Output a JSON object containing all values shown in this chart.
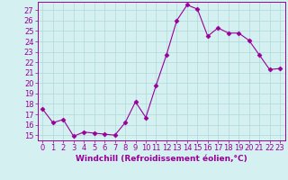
{
  "x": [
    0,
    1,
    2,
    3,
    4,
    5,
    6,
    7,
    8,
    9,
    10,
    11,
    12,
    13,
    14,
    15,
    16,
    17,
    18,
    19,
    20,
    21,
    22,
    23
  ],
  "y": [
    17.5,
    16.2,
    16.5,
    14.9,
    15.3,
    15.2,
    15.1,
    15.0,
    16.2,
    18.2,
    16.7,
    19.8,
    22.7,
    26.0,
    27.5,
    27.1,
    24.5,
    25.3,
    24.8,
    24.8,
    24.1,
    22.7,
    21.3,
    21.4
  ],
  "line_color": "#990099",
  "marker": "D",
  "marker_size": 2.5,
  "bg_color": "#d4f0f0",
  "grid_color": "#b0d8d8",
  "xlabel": "Windchill (Refroidissement éolien,°C)",
  "ylabel_ticks": [
    15,
    16,
    17,
    18,
    19,
    20,
    21,
    22,
    23,
    24,
    25,
    26,
    27
  ],
  "ylim": [
    14.5,
    27.8
  ],
  "xlim": [
    -0.5,
    23.5
  ],
  "xlabel_fontsize": 6.5,
  "tick_fontsize": 6,
  "label_color": "#990099",
  "tick_color": "#990099"
}
